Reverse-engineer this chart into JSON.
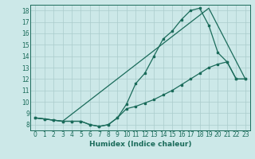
{
  "xlabel": "Humidex (Indice chaleur)",
  "bg_color": "#cce8e8",
  "grid_color": "#aacccc",
  "line_color": "#1a6b5a",
  "xlim": [
    -0.5,
    23.5
  ],
  "ylim": [
    7.5,
    18.5
  ],
  "xticks": [
    0,
    1,
    2,
    3,
    4,
    5,
    6,
    7,
    8,
    9,
    10,
    11,
    12,
    13,
    14,
    15,
    16,
    17,
    18,
    19,
    20,
    21,
    22,
    23
  ],
  "yticks": [
    8,
    9,
    10,
    11,
    12,
    13,
    14,
    15,
    16,
    17,
    18
  ],
  "line1_x": [
    0,
    1,
    2,
    3,
    4,
    5,
    6,
    7,
    8,
    9,
    10,
    11,
    12,
    13,
    14,
    15,
    16,
    17,
    18,
    19,
    20,
    21,
    22,
    23
  ],
  "line1_y": [
    8.6,
    8.5,
    8.4,
    8.3,
    8.3,
    8.3,
    8.0,
    7.85,
    8.0,
    8.6,
    9.8,
    11.6,
    12.5,
    14.0,
    15.5,
    16.2,
    17.2,
    18.0,
    18.2,
    16.7,
    14.3,
    13.5,
    12.0,
    12.0
  ],
  "line2_x": [
    0,
    1,
    2,
    3,
    4,
    5,
    6,
    7,
    8,
    9,
    10,
    11,
    12,
    13,
    14,
    15,
    16,
    17,
    18,
    19,
    20,
    21,
    22,
    23
  ],
  "line2_y": [
    8.6,
    8.5,
    8.4,
    8.3,
    8.3,
    8.3,
    8.0,
    7.85,
    8.0,
    8.6,
    9.4,
    9.6,
    9.9,
    10.2,
    10.6,
    11.0,
    11.5,
    12.0,
    12.5,
    13.0,
    13.3,
    13.5,
    12.0,
    12.0
  ],
  "line3_x": [
    0,
    3,
    19,
    23
  ],
  "line3_y": [
    8.6,
    8.3,
    18.2,
    12.0
  ]
}
